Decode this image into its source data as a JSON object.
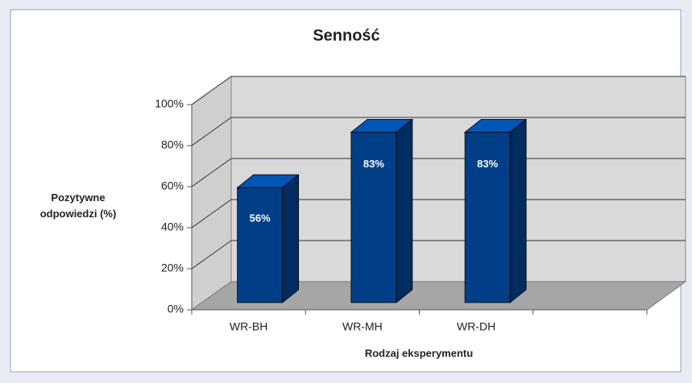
{
  "chart_data": {
    "type": "bar3d",
    "title": "Senność",
    "ylabel": "Pozytywne odpowiedzi (%)",
    "xlabel": "Rodzaj eksperymentu",
    "categories": [
      "WR-BH",
      "WR-MH",
      "WR-DH",
      null
    ],
    "values": [
      56,
      83,
      83,
      null
    ],
    "value_labels": [
      "56%",
      "83%",
      "83%",
      null
    ],
    "color": "#003f87",
    "ylim": [
      0,
      100
    ],
    "yticks": [
      {
        "value": 0,
        "label": "0%"
      },
      {
        "value": 20,
        "label": "20%"
      },
      {
        "value": 40,
        "label": "40%"
      },
      {
        "value": 60,
        "label": "60%"
      },
      {
        "value": 80,
        "label": "80%"
      },
      {
        "value": 100,
        "label": "100%"
      }
    ],
    "grid": true
  }
}
